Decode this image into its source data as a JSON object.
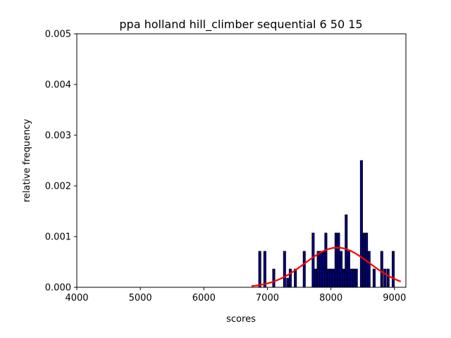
{
  "chart_data": {
    "type": "bar",
    "title": "ppa holland hill_climber sequential 6 50 15",
    "xlabel": "scores",
    "ylabel": "relative frequency",
    "xlim": [
      4000,
      9180
    ],
    "ylim": [
      0,
      0.005
    ],
    "xticks": [
      4000,
      5000,
      6000,
      7000,
      8000,
      9000
    ],
    "xtick_labels": [
      "4000",
      "5000",
      "6000",
      "7000",
      "8000",
      "9000"
    ],
    "yticks": [
      0,
      0.001,
      0.002,
      0.003,
      0.004,
      0.005
    ],
    "ytick_labels": [
      "0.000",
      "0.001",
      "0.002",
      "0.003",
      "0.004",
      "0.005"
    ],
    "grid": false,
    "bin_width": 36,
    "bar_color": "#000080",
    "edge_color": "#000000",
    "curve_color": "#ff0000",
    "bars": [
      {
        "x": 6880,
        "value": 0.00071
      },
      {
        "x": 6960,
        "value": 0.00071
      },
      {
        "x": 7100,
        "value": 0.00036
      },
      {
        "x": 7270,
        "value": 0.00071
      },
      {
        "x": 7320,
        "value": 0.00018
      },
      {
        "x": 7360,
        "value": 0.00036
      },
      {
        "x": 7440,
        "value": 0.00036
      },
      {
        "x": 7580,
        "value": 0.00071
      },
      {
        "x": 7720,
        "value": 0.00107
      },
      {
        "x": 7760,
        "value": 0.00036
      },
      {
        "x": 7800,
        "value": 0.00071
      },
      {
        "x": 7840,
        "value": 0.00071
      },
      {
        "x": 7880,
        "value": 0.00071
      },
      {
        "x": 7920,
        "value": 0.00107
      },
      {
        "x": 7960,
        "value": 0.00036
      },
      {
        "x": 8000,
        "value": 0.00036
      },
      {
        "x": 8040,
        "value": 0.00036
      },
      {
        "x": 8080,
        "value": 0.00107
      },
      {
        "x": 8120,
        "value": 0.00107
      },
      {
        "x": 8160,
        "value": 0.00071
      },
      {
        "x": 8200,
        "value": 0.00036
      },
      {
        "x": 8240,
        "value": 0.00143
      },
      {
        "x": 8280,
        "value": 0.00071
      },
      {
        "x": 8320,
        "value": 0.00036
      },
      {
        "x": 8360,
        "value": 0.00036
      },
      {
        "x": 8400,
        "value": 0.00036
      },
      {
        "x": 8480,
        "value": 0.0025
      },
      {
        "x": 8520,
        "value": 0.00107
      },
      {
        "x": 8560,
        "value": 0.00107
      },
      {
        "x": 8600,
        "value": 0.00071
      },
      {
        "x": 8680,
        "value": 0.00036
      },
      {
        "x": 8800,
        "value": 0.00071
      },
      {
        "x": 8850,
        "value": 0.00036
      },
      {
        "x": 8900,
        "value": 0.00036
      },
      {
        "x": 8980,
        "value": 0.00071
      }
    ],
    "curve": {
      "type": "normal_pdf",
      "mean": 8100,
      "std": 510,
      "x_range": [
        6750,
        9100
      ]
    }
  }
}
